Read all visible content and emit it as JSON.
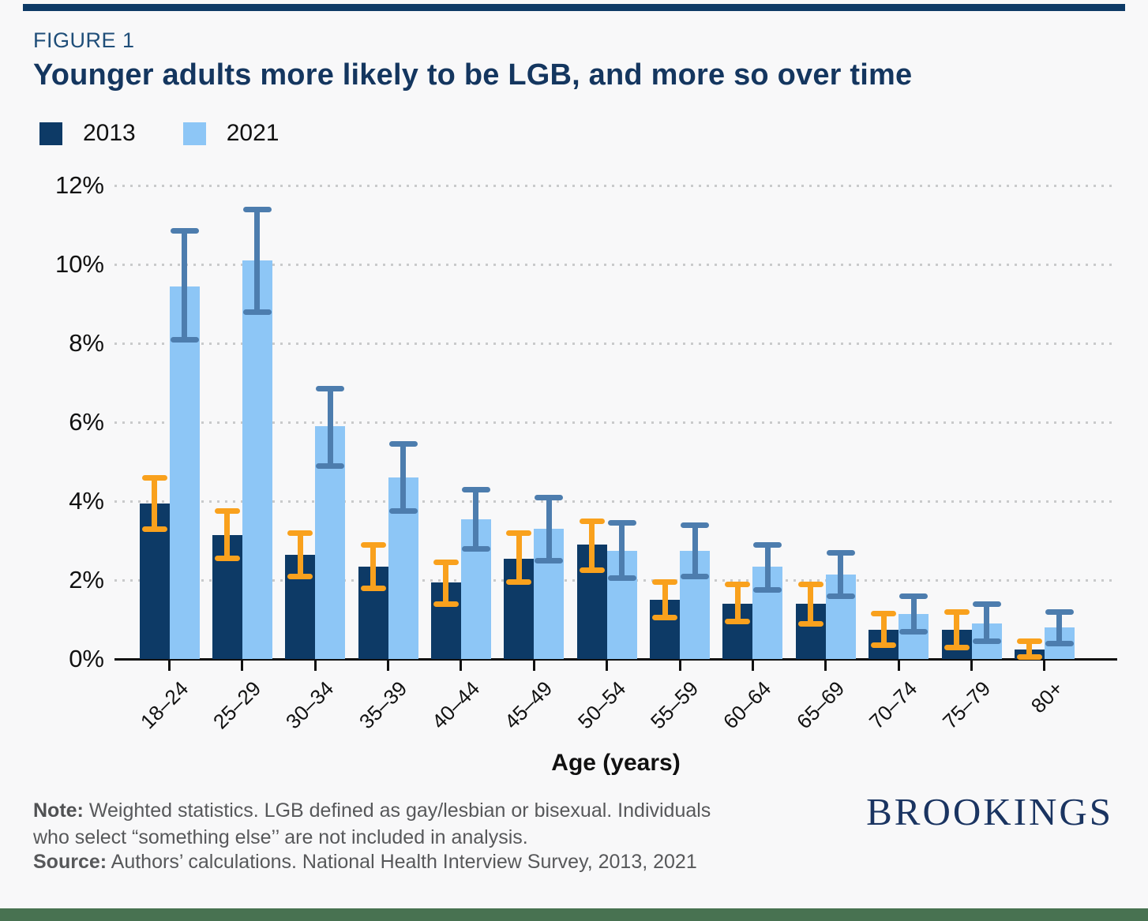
{
  "page": {
    "figure_label": "FIGURE 1",
    "title": "Younger adults more likely to be LGB, and more so over time",
    "brand": "BROOKINGS",
    "note_label": "Note:",
    "note_text": " Weighted statistics. LGB defined as gay/lesbian or bisexual. Individuals who select “something else’’ are not included in analysis.",
    "source_label": "Source:",
    "source_text": " Authors’ calculations. National Health Interview Survey, 2013, 2021"
  },
  "legend": [
    {
      "label": "2013",
      "color": "#0d3a66"
    },
    {
      "label": "2021",
      "color": "#8dc6f6"
    }
  ],
  "colors": {
    "background": "#f8f8f9",
    "title_navy": "#14365f",
    "figure_label_navy": "#1f4e79",
    "bar_2013": "#0d3a66",
    "bar_2021": "#8dc6f6",
    "error_2013": "#f9a11d",
    "error_2021": "#4d7dae",
    "gridline": "#c9cacb",
    "axis": "#111111",
    "footer_text": "#57585a",
    "brand_navy": "#1a3461",
    "bottom_bar_green": "#487251",
    "top_rule_navy": "#0d3a66"
  },
  "chart_data": {
    "type": "bar",
    "title": "Younger adults more likely to be LGB, and more so over time",
    "categories": [
      "18–24",
      "25–29",
      "30–34",
      "35–39",
      "40–44",
      "45–49",
      "50–54",
      "55–59",
      "60–64",
      "65–69",
      "70–74",
      "75–79",
      "80+"
    ],
    "series": [
      {
        "name": "2013",
        "color": "#0d3a66",
        "error_color": "#f9a11d",
        "values": [
          3.95,
          3.15,
          2.65,
          2.35,
          1.95,
          2.55,
          2.9,
          1.5,
          1.4,
          1.4,
          0.75,
          0.75,
          0.25
        ],
        "ci_low": [
          3.3,
          2.55,
          2.1,
          1.8,
          1.4,
          1.95,
          2.25,
          1.05,
          0.95,
          0.9,
          0.35,
          0.3,
          0.05
        ],
        "ci_high": [
          4.6,
          3.75,
          3.2,
          2.9,
          2.45,
          3.2,
          3.5,
          1.95,
          1.9,
          1.9,
          1.15,
          1.2,
          0.45
        ]
      },
      {
        "name": "2021",
        "color": "#8dc6f6",
        "error_color": "#4d7dae",
        "values": [
          9.45,
          10.1,
          5.9,
          4.6,
          3.55,
          3.3,
          2.75,
          2.75,
          2.35,
          2.15,
          1.15,
          0.9,
          0.8
        ],
        "ci_low": [
          8.1,
          8.8,
          4.9,
          3.75,
          2.8,
          2.5,
          2.05,
          2.1,
          1.75,
          1.6,
          0.7,
          0.45,
          0.4
        ],
        "ci_high": [
          10.85,
          11.4,
          6.85,
          5.45,
          4.3,
          4.1,
          3.45,
          3.4,
          2.9,
          2.7,
          1.6,
          1.4,
          1.2
        ]
      }
    ],
    "xlabel": "Age (years)",
    "ylabel": "",
    "ylim": [
      0,
      12
    ],
    "ytick_values": [
      0,
      2,
      4,
      6,
      8,
      10,
      12
    ],
    "ytick_labels": [
      "0%",
      "2%",
      "4%",
      "6%",
      "8%",
      "10%",
      "12%"
    ],
    "grid": "horizontal-dotted",
    "legend_position": "top-left",
    "error_bars": true
  }
}
